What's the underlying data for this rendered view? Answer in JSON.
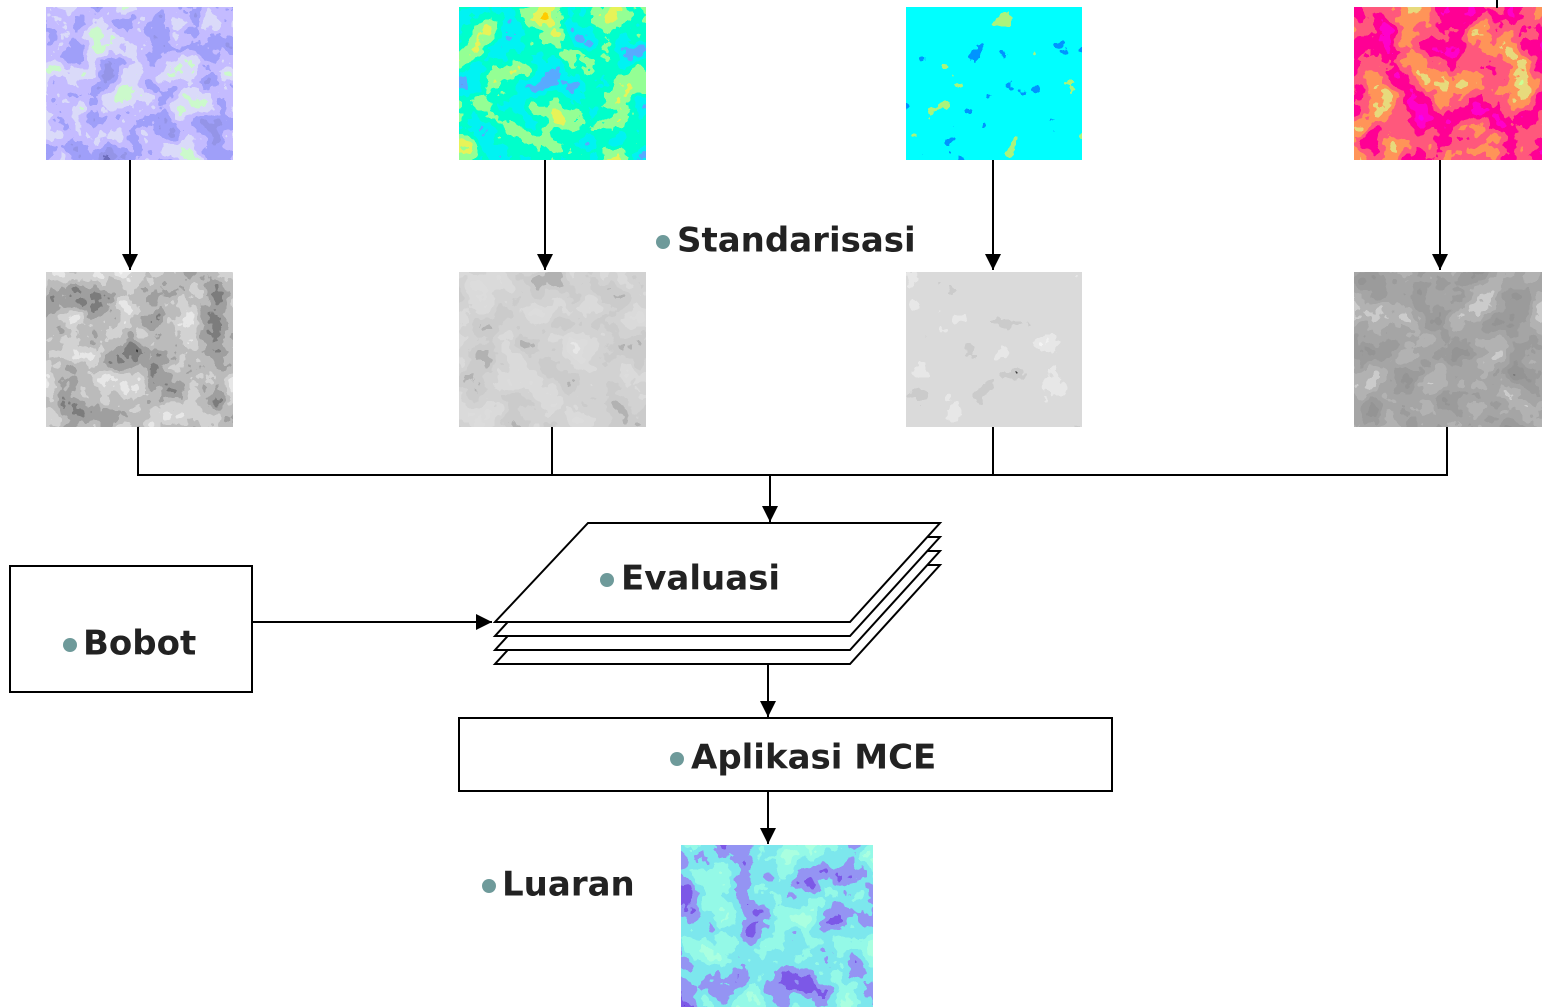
{
  "labels": {
    "standarisasi": "Standarisasi",
    "evaluasi": "Evaluasi",
    "bobot": "Bobot",
    "aplikasi": "Aplikasi MCE",
    "luaran": "Luaran"
  }
}
